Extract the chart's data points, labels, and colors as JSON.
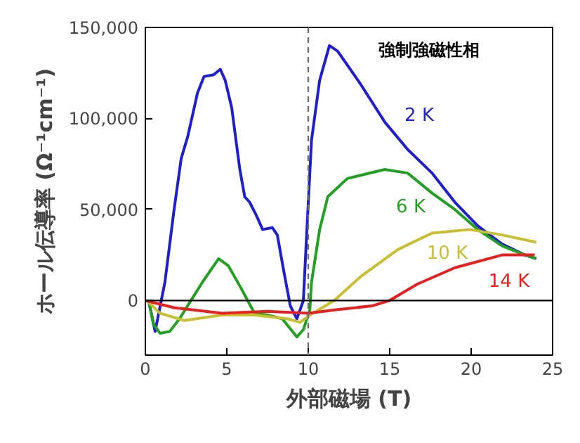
{
  "chart_data": {
    "type": "line",
    "xlabel": "外部磁場 (T)",
    "ylabel": "ホール伝導率 (Ω⁻¹cm⁻¹)",
    "xlim": [
      0,
      25
    ],
    "ylim": [
      -30000,
      150000
    ],
    "xticks": [
      0,
      5,
      10,
      15,
      20,
      25
    ],
    "yticks": [
      {
        "value": 0,
        "label": "0"
      },
      {
        "value": 50000,
        "label": "50,000"
      },
      {
        "value": 100000,
        "label": "100,000"
      },
      {
        "value": 150000,
        "label": "150,000"
      }
    ],
    "grid": false,
    "legend": false,
    "series": [
      {
        "name": "2 K",
        "color": "#1f1fd0",
        "x": [
          0.2,
          0.6,
          1.2,
          1.75,
          2.2,
          2.6,
          3.2,
          3.6,
          4.2,
          4.6,
          4.9,
          5.3,
          5.8,
          6.1,
          6.4,
          6.8,
          7.2,
          7.8,
          8.1,
          8.5,
          8.9,
          9.3,
          9.7,
          9.9,
          10.2,
          10.7,
          11.3,
          11.8,
          13.2,
          14.7,
          16.1,
          17.6,
          19,
          20.4,
          21.9,
          23.3,
          24
        ],
        "values": [
          0,
          -17000,
          10000,
          49000,
          78000,
          90000,
          114000,
          123000,
          124000,
          127000,
          121000,
          106000,
          72000,
          57000,
          54000,
          47000,
          39000,
          40000,
          36000,
          16000,
          -3000,
          -10000,
          0,
          36000,
          88000,
          121000,
          140000,
          137000,
          119000,
          98000,
          83000,
          70000,
          54000,
          41000,
          31000,
          25000,
          23000
        ]
      },
      {
        "name": "6 K",
        "color": "#22a022",
        "x": [
          0.2,
          0.5,
          0.9,
          1.5,
          2.1,
          2.8,
          3.5,
          4.5,
          5.1,
          5.8,
          6.1,
          6.7,
          7.5,
          8.4,
          9.3,
          9.7,
          10.1,
          10.2,
          10.7,
          11.2,
          12.4,
          14.7,
          16.1,
          17.6,
          19,
          20.4,
          21.9,
          23.3,
          24
        ],
        "values": [
          0,
          -13000,
          -18000,
          -17000,
          -10000,
          0,
          10000,
          23000,
          19000,
          8000,
          3000,
          -7000,
          -8000,
          -10000,
          -20000,
          -16000,
          -5000,
          10000,
          39000,
          57000,
          67000,
          72000,
          70000,
          59000,
          50000,
          39000,
          30000,
          25000,
          23000
        ]
      },
      {
        "name": "10 K",
        "color": "#c8c030",
        "x": [
          0.2,
          0.9,
          2.4,
          4.7,
          6.7,
          8.7,
          9.5,
          10.1,
          11.6,
          13.2,
          15.5,
          17.6,
          19.9,
          21.9,
          24
        ],
        "values": [
          -1000,
          -7000,
          -11000,
          -8000,
          -8000,
          -10000,
          -12000,
          -8000,
          0,
          13000,
          28000,
          37000,
          39000,
          36000,
          32000
        ]
      },
      {
        "name": "14 K",
        "color": "#e82020",
        "x": [
          0,
          1.8,
          4.7,
          7.5,
          10,
          11.8,
          13.9,
          15,
          16.7,
          19,
          21.9,
          23.9
        ],
        "values": [
          0,
          -4000,
          -7000,
          -6000,
          -7000,
          -5000,
          -3000,
          0,
          9000,
          18000,
          25000,
          25000
        ]
      }
    ],
    "ref_lines": [
      {
        "axis": "x",
        "value": 10,
        "color": "#707070",
        "line_style": "dashed"
      },
      {
        "axis": "y",
        "value": 0,
        "color": "#000000",
        "line_style": "solid"
      }
    ],
    "annotations": [
      "強制強磁性相"
    ]
  }
}
